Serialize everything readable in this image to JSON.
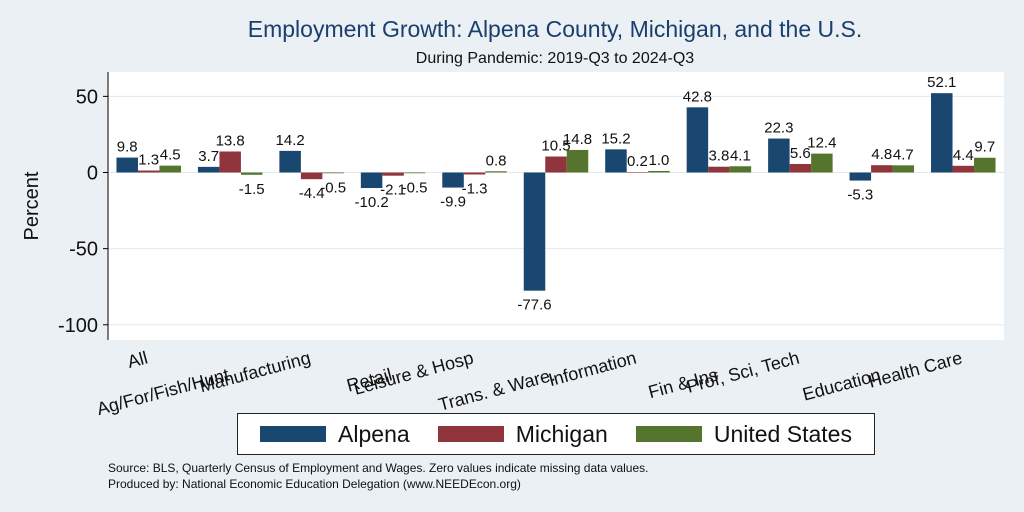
{
  "title": "Employment Growth: Alpena County, Michigan, and the U.S.",
  "subtitle": "During Pandemic: 2019-Q3 to 2024-Q3",
  "footer": {
    "line1": "Source: BLS, Quarterly Census of Employment and Wages. Zero values indicate missing data values.",
    "line2": "Produced by: National Economic Education Delegation (www.NEEDEcon.org)"
  },
  "colors": {
    "alpena": "#1a476f",
    "michigan": "#90353b",
    "united_states": "#55752f",
    "plot_bg": "#ffffff",
    "page_bg": "#eaf0f3"
  },
  "chart_data": {
    "type": "bar",
    "title": "Employment Growth: Alpena County, Michigan, and the U.S.",
    "subtitle": "During Pandemic: 2019-Q3 to 2024-Q3",
    "ylabel": "Percent",
    "xlabel": "",
    "ylim": [
      -110,
      66
    ],
    "yticks": [
      50,
      0,
      -50,
      -100
    ],
    "grid": true,
    "legend_position": "bottom",
    "categories": [
      "All",
      "Ag/For/Fish/Hunt",
      "Manufacturing",
      "Retail",
      "Leisure & Hosp",
      "Trans. & Ware.",
      "Information",
      "Fin & Ins",
      "Prof, Sci, Tech",
      "Education",
      "Health Care"
    ],
    "series": [
      {
        "name": "Alpena",
        "values": [
          9.8,
          3.7,
          14.2,
          -10.2,
          -9.9,
          -77.6,
          15.2,
          42.8,
          22.3,
          -5.3,
          52.1
        ]
      },
      {
        "name": "Michigan",
        "values": [
          1.3,
          13.8,
          -4.4,
          -2.1,
          -1.3,
          10.5,
          0.2,
          3.8,
          5.6,
          4.8,
          4.4
        ]
      },
      {
        "name": "United States",
        "values": [
          4.5,
          -1.5,
          -0.5,
          -0.5,
          0.8,
          14.8,
          1.0,
          4.1,
          12.4,
          4.7,
          9.7
        ]
      }
    ]
  }
}
